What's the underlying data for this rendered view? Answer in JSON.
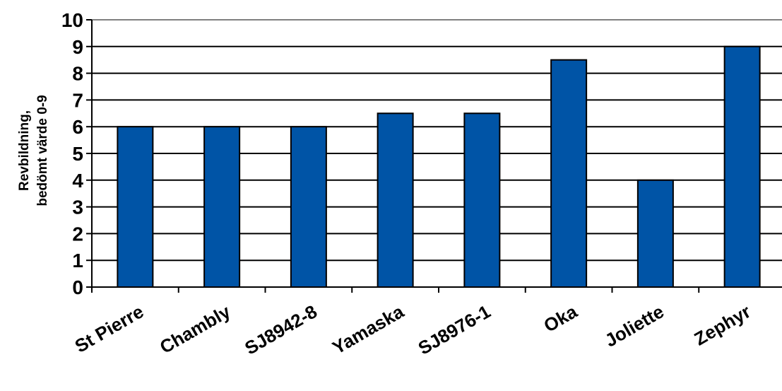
{
  "chart_data": {
    "type": "bar",
    "title": "",
    "xlabel": "",
    "ylabel": [
      "Revbildning,",
      "bedömt värde 0-9"
    ],
    "categories": [
      "St Pierre",
      "Chambly",
      "SJ8942-8",
      "Yamaska",
      "SJ8976-1",
      "Oka",
      "Joliette",
      "Zephyr"
    ],
    "values": [
      6,
      6,
      6,
      6.5,
      6.5,
      8.5,
      4,
      9
    ],
    "ylim": [
      0,
      10
    ],
    "yticks": [
      0,
      1,
      2,
      3,
      4,
      5,
      6,
      7,
      8,
      9,
      10
    ],
    "grid": true,
    "legend": "none",
    "colors": {
      "bar": "#0054A6",
      "bar_edge": "#000000",
      "grid": "#000000",
      "top_grid": "#808080"
    }
  }
}
